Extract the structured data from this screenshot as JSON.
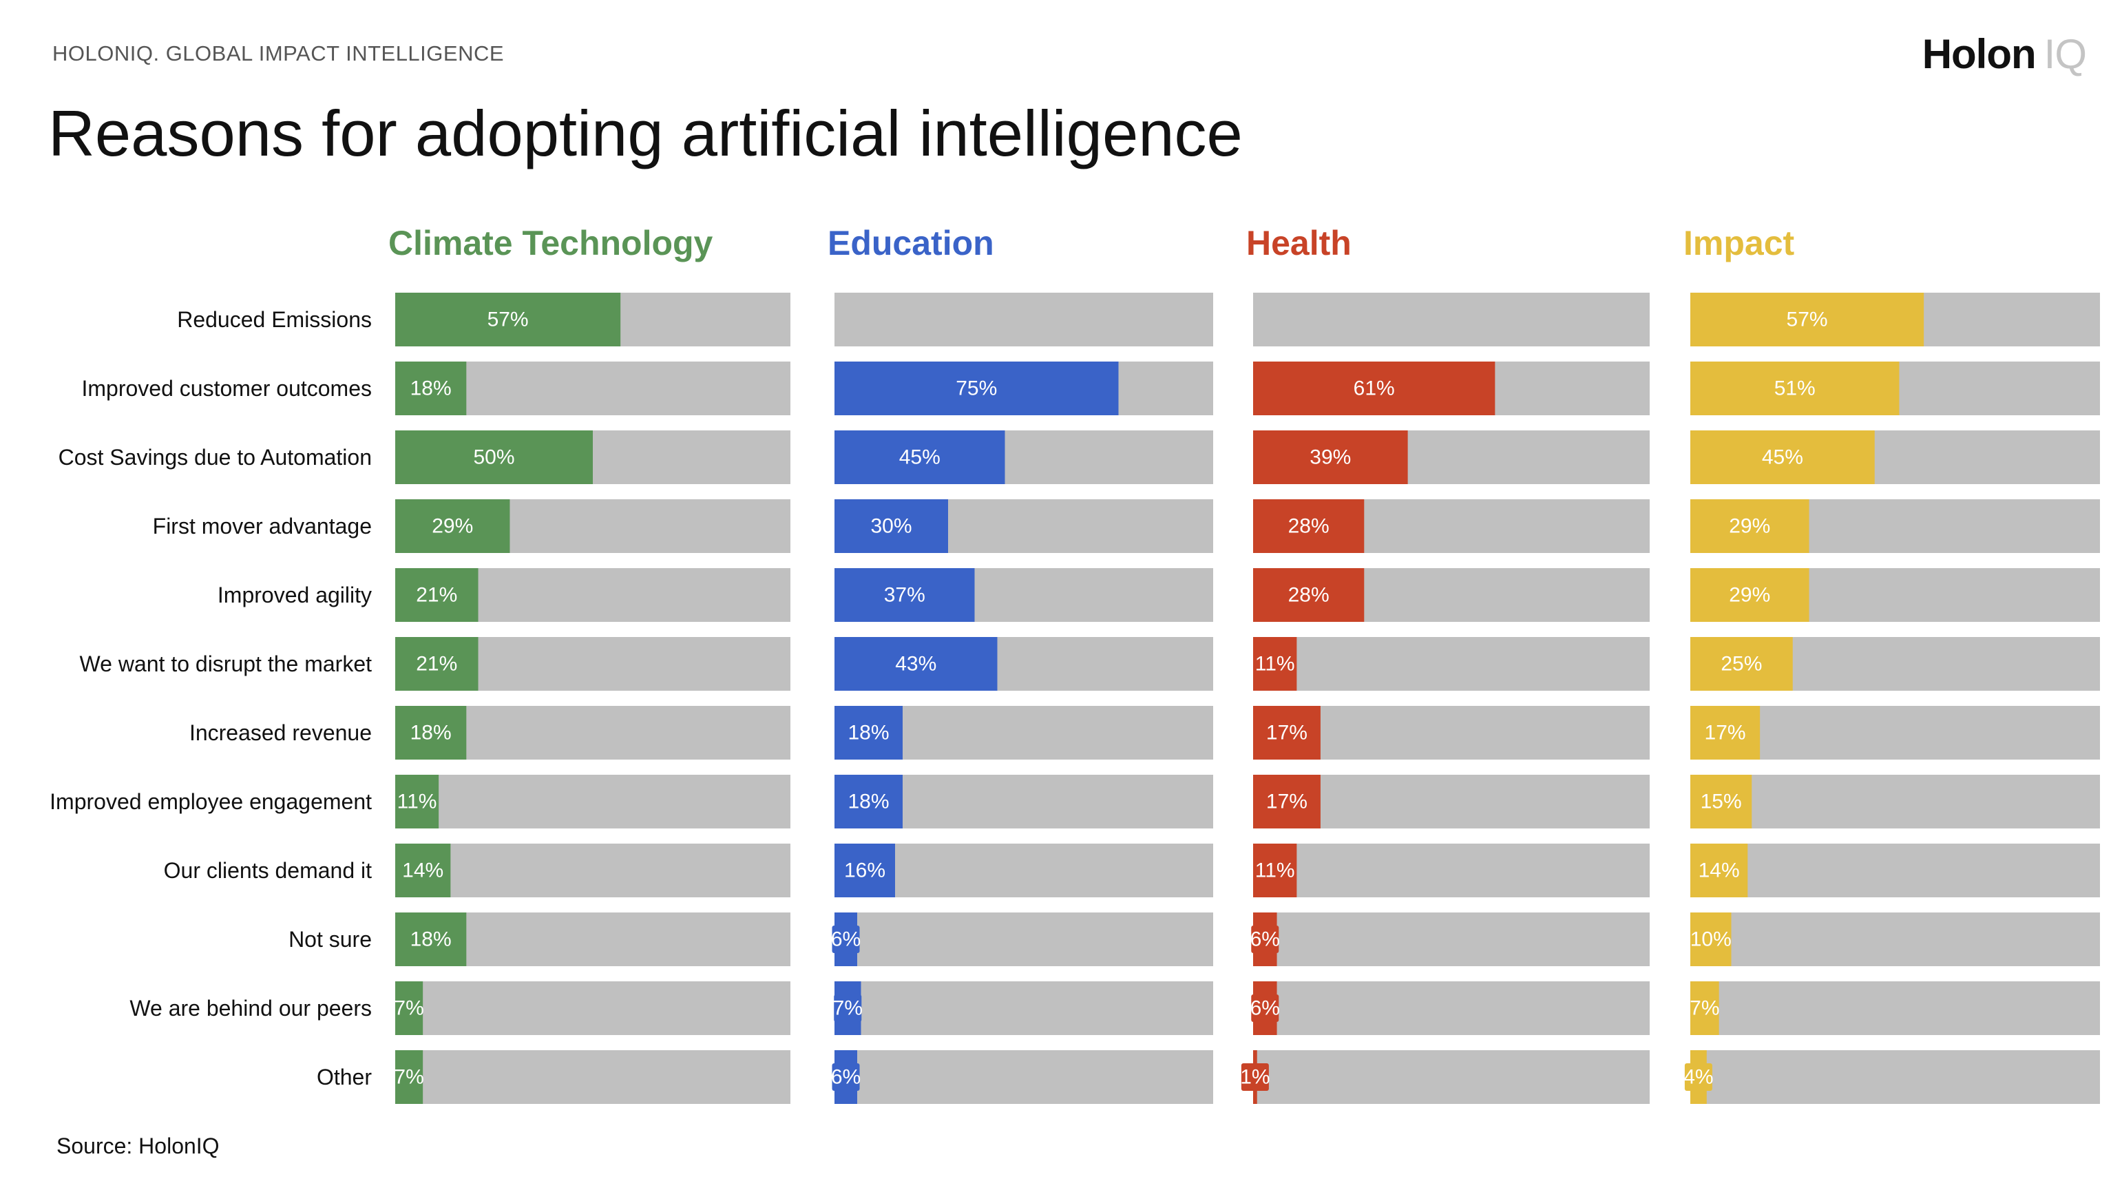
{
  "header": {
    "eyebrow": "HOLONIQ. GLOBAL IMPACT INTELLIGENCE",
    "title": "Reasons for adopting artificial intelligence",
    "logo_main": "Holon",
    "logo_sub": "IQ"
  },
  "footer": {
    "source": "Source: HolonIQ"
  },
  "chart_data": {
    "type": "bar",
    "orientation": "horizontal",
    "layout": "small-multiples",
    "xlim": [
      0,
      100
    ],
    "track_color": "#c0c0c0",
    "categories": [
      "Reduced Emissions",
      "Improved customer outcomes",
      "Cost Savings due to Automation",
      "First mover advantage",
      "Improved agility",
      "We want to disrupt the market",
      "Increased revenue",
      "Improved employee engagement",
      "Our clients demand it",
      "Not sure",
      "We are behind our peers",
      "Other"
    ],
    "series": [
      {
        "name": "Climate Technology",
        "color": "#5a9456",
        "values": [
          57,
          18,
          50,
          29,
          21,
          21,
          18,
          11,
          14,
          18,
          7,
          7
        ],
        "labels": [
          "57%",
          "18%",
          "50%",
          "29%",
          "21%",
          "21%",
          "18%",
          "11%",
          "14%",
          "18%",
          "7%",
          "7%"
        ]
      },
      {
        "name": "Education",
        "color": "#3a63c8",
        "values": [
          null,
          75,
          45,
          30,
          37,
          43,
          18,
          18,
          16,
          6,
          7,
          6
        ],
        "labels": [
          "",
          "75%",
          "45%",
          "30%",
          "37%",
          "43%",
          "18%",
          "18%",
          "16%",
          "6%",
          "7%",
          "6%"
        ]
      },
      {
        "name": "Health",
        "color": "#c84327",
        "values": [
          null,
          61,
          39,
          28,
          28,
          11,
          17,
          17,
          11,
          6,
          6,
          1
        ],
        "labels": [
          "",
          "61%",
          "39%",
          "28%",
          "28%",
          "11%",
          "17%",
          "17%",
          "11%",
          "6%",
          "6%",
          "1%"
        ]
      },
      {
        "name": "Impact",
        "color": "#e4bd3d",
        "values": [
          57,
          51,
          45,
          29,
          29,
          25,
          17,
          15,
          14,
          10,
          7,
          4
        ],
        "labels": [
          "57%",
          "51%",
          "45%",
          "29%",
          "29%",
          "25%",
          "17%",
          "15%",
          "14%",
          "10%",
          "7%",
          "4%"
        ]
      }
    ]
  }
}
